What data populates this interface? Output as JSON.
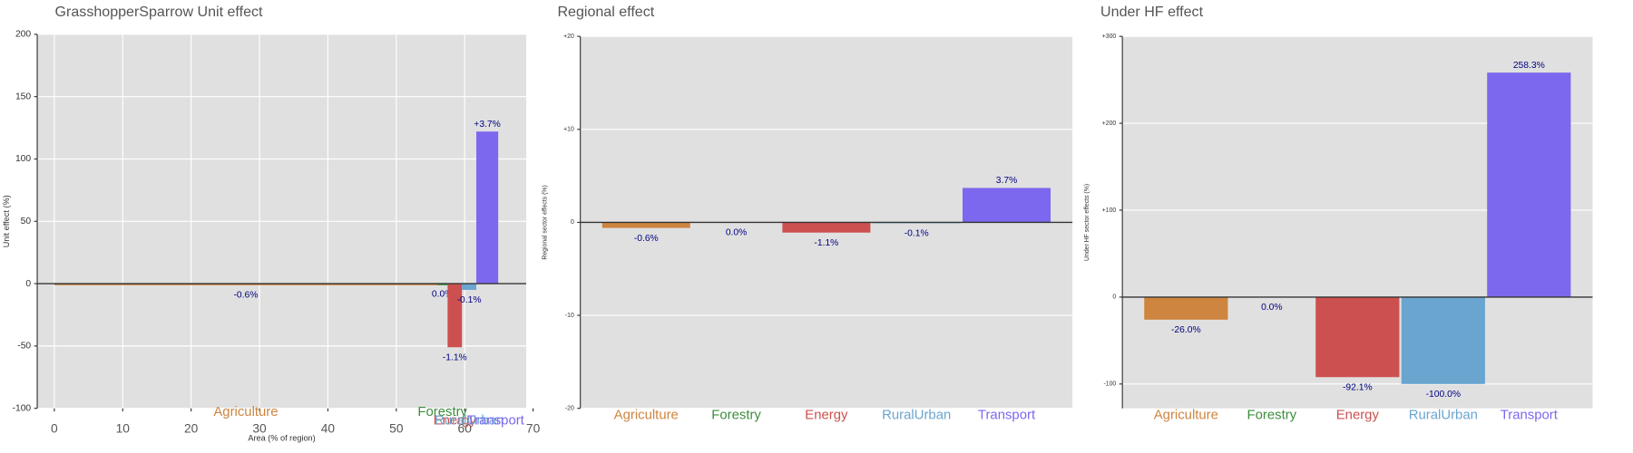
{
  "chart_data": [
    {
      "type": "variwide",
      "title": "GrasshopperSparrow Unit effect",
      "x_label": "Area (% of region)",
      "y_label": "Unit effect (%)",
      "categories": [
        "Agriculture",
        "Forestry",
        "Energy",
        "RuralUrban",
        "Transport"
      ],
      "colors": [
        "#cd853f",
        "#3c8d3c",
        "#cd5050",
        "#6aa5cf",
        "#7b68ee"
      ],
      "bins": [
        0,
        56,
        57.5,
        59.6,
        61.7,
        64.9
      ],
      "values": [
        -1,
        0,
        -51,
        -5,
        122
      ],
      "annotations": [
        "-0.6%",
        "0.0%",
        "-1.1%",
        "-0.1%",
        "+3.7%"
      ],
      "xlim": [
        -2.5,
        69
      ],
      "xticks": [
        0,
        10,
        20,
        30,
        40,
        50,
        60,
        70
      ],
      "ylim": [
        -100,
        200
      ],
      "yticks": [
        -100,
        -50,
        0,
        50,
        100,
        150,
        200
      ],
      "grid": true
    },
    {
      "type": "bar",
      "title": "Regional effect",
      "y_label": "Regional sector effects (%)",
      "categories": [
        "Agriculture",
        "Forestry",
        "Energy",
        "RuralUrban",
        "Transport"
      ],
      "colors": [
        "#cd853f",
        "#3c8d3c",
        "#cd5050",
        "#6aa5cf",
        "#7b68ee"
      ],
      "values": [
        -0.6,
        0.0,
        -1.1,
        -0.1,
        3.7
      ],
      "value_labels": [
        "-0.6%",
        "0.0%",
        "-1.1%",
        "-0.1%",
        "3.7%"
      ],
      "ylim": [
        -20,
        20
      ],
      "yticks": [
        {
          "value": -20,
          "label": "-20"
        },
        {
          "value": -10,
          "label": "-10"
        },
        0,
        {
          "value": 10,
          "label": "+10"
        },
        {
          "value": 20,
          "label": "+20"
        }
      ],
      "grid": true
    },
    {
      "type": "bar",
      "title": "Under HF effect",
      "y_label": "Under HF sector effects (%)",
      "categories": [
        "Agriculture",
        "Forestry",
        "Energy",
        "RuralUrban",
        "Transport"
      ],
      "colors": [
        "#cd853f",
        "#3c8d3c",
        "#cd5050",
        "#6aa5cf",
        "#7b68ee"
      ],
      "values": [
        -26.0,
        0.0,
        -92.1,
        -100.0,
        258.3
      ],
      "value_labels": [
        "-26.0%",
        "0.0%",
        "-92.1%",
        "-100.0%",
        "258.3%"
      ],
      "ylim": [
        -128,
        300
      ],
      "yticks": [
        {
          "value": -100,
          "label": "-100"
        },
        0,
        {
          "value": 100,
          "label": "+100"
        },
        {
          "value": 200,
          "label": "+200"
        },
        {
          "value": 300,
          "label": "+300"
        }
      ],
      "grid": true
    }
  ]
}
